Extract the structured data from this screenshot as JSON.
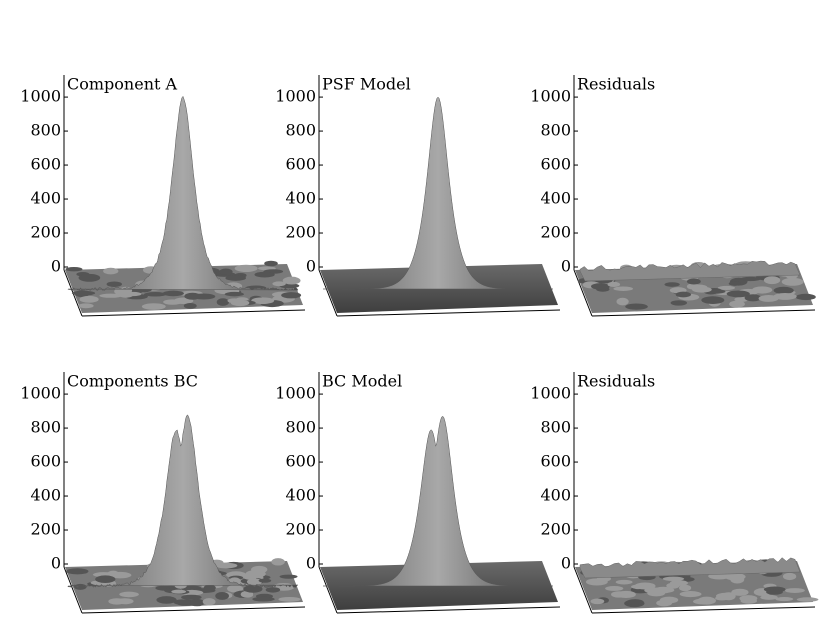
{
  "chart_data": [
    {
      "type": "surface",
      "title": "Component A",
      "zlim": [
        0,
        1130
      ],
      "zticks": [
        0,
        200,
        400,
        600,
        800,
        1000
      ],
      "peak_heights": [
        1000
      ],
      "color": "#8a8a8a",
      "noise": true
    },
    {
      "type": "surface",
      "title": "PSF Model",
      "zlim": [
        0,
        1130
      ],
      "zticks": [
        0,
        200,
        400,
        600,
        800,
        1000
      ],
      "peak_heights": [
        1000
      ],
      "color": "#8a8a8a",
      "noise": false
    },
    {
      "type": "surface",
      "title": "Residuals",
      "zlim": [
        0,
        1130
      ],
      "zticks": [
        0,
        200,
        400,
        600,
        800,
        1000
      ],
      "peak_heights": [
        30
      ],
      "color": "#8a8a8a",
      "noise": true
    },
    {
      "type": "surface",
      "title": "Components BC",
      "zlim": [
        0,
        1130
      ],
      "zticks": [
        0,
        200,
        400,
        600,
        800,
        1000
      ],
      "peak_heights": [
        790,
        870
      ],
      "color": "#8a8a8a",
      "noise": true
    },
    {
      "type": "surface",
      "title": "BC Model",
      "zlim": [
        0,
        1130
      ],
      "zticks": [
        0,
        200,
        400,
        600,
        800,
        1000
      ],
      "peak_heights": [
        790,
        870
      ],
      "color": "#8a8a8a",
      "noise": false
    },
    {
      "type": "surface",
      "title": "Residuals",
      "zlim": [
        0,
        1130
      ],
      "zticks": [
        0,
        200,
        400,
        600,
        800,
        1000
      ],
      "peak_heights": [
        30
      ],
      "color": "#8a8a8a",
      "noise": true
    }
  ]
}
